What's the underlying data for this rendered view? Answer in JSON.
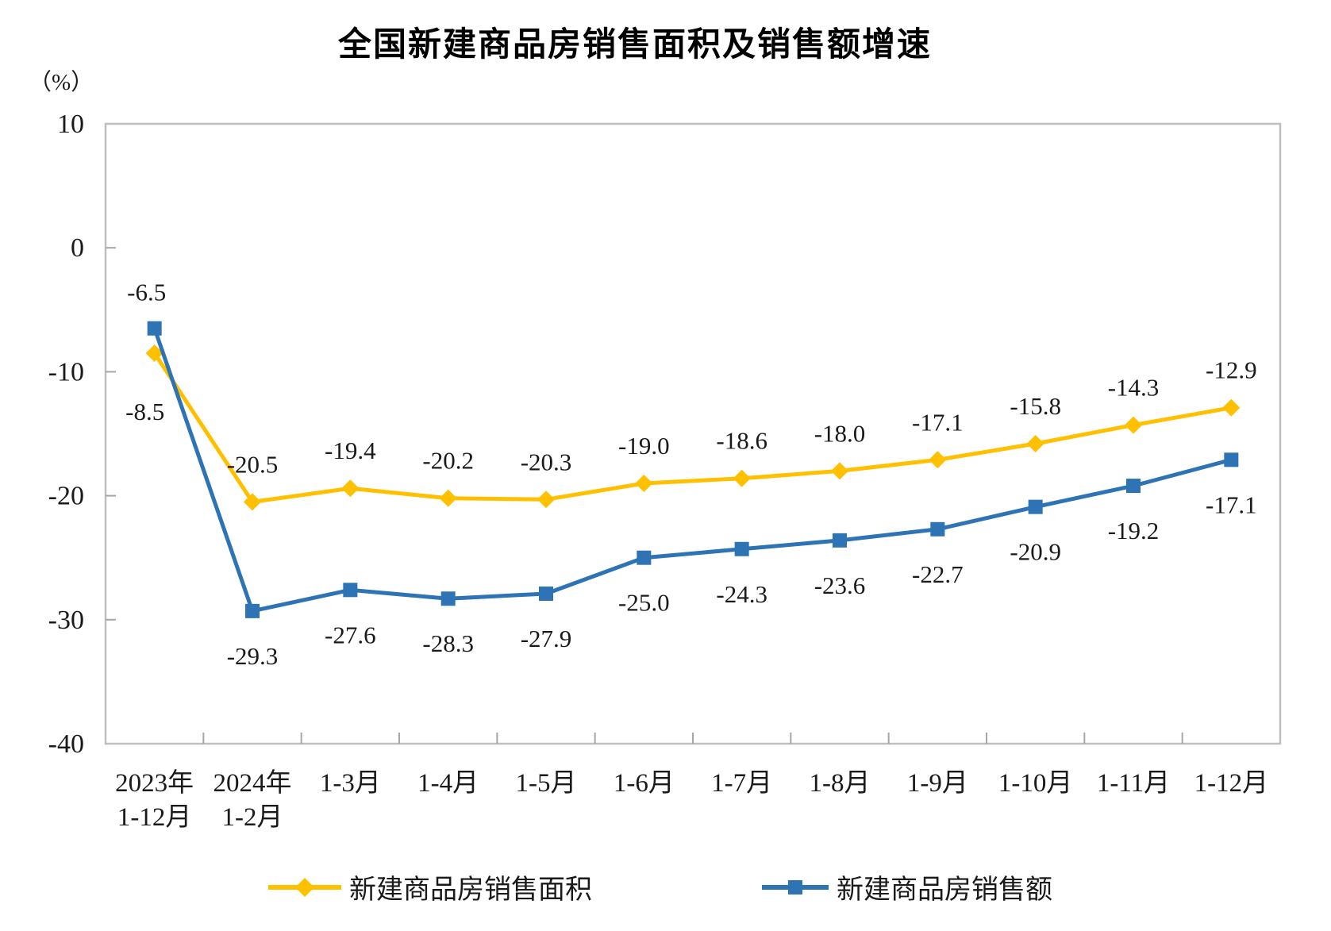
{
  "title": "全国新建商品房销售面积及销售额增速",
  "axis_unit_label": "（%）",
  "chart_data": {
    "type": "line",
    "title": "全国新建商品房销售面积及销售额增速",
    "ylabel": "（%）",
    "xlabel": "",
    "ylim": [
      -40,
      10
    ],
    "y_ticks": [
      10,
      0,
      -10,
      -20,
      -30,
      -40
    ],
    "grid": false,
    "legend_position": "bottom",
    "categories": [
      "2023年\n1-12月",
      "2024年\n1-2月",
      "1-3月",
      "1-4月",
      "1-5月",
      "1-6月",
      "1-7月",
      "1-8月",
      "1-9月",
      "1-10月",
      "1-11月",
      "1-12月"
    ],
    "series": [
      {
        "name": "新建商品房销售面积",
        "marker": "diamond",
        "color": "#FFC000",
        "values": [
          -8.5,
          -20.5,
          -19.4,
          -20.2,
          -20.3,
          -19.0,
          -18.6,
          -18.0,
          -17.1,
          -15.8,
          -14.3,
          -12.9
        ]
      },
      {
        "name": "新建商品房销售额",
        "marker": "square",
        "color": "#2E74B5",
        "values": [
          -6.5,
          -29.3,
          -27.6,
          -28.3,
          -27.9,
          -25.0,
          -24.3,
          -23.6,
          -22.7,
          -20.9,
          -19.2,
          -17.1
        ]
      }
    ],
    "colors": {
      "axis_border": "#BFBFBF",
      "tick": "#A6A6A6",
      "text": "#1a1a1a",
      "background": "#ffffff"
    }
  }
}
